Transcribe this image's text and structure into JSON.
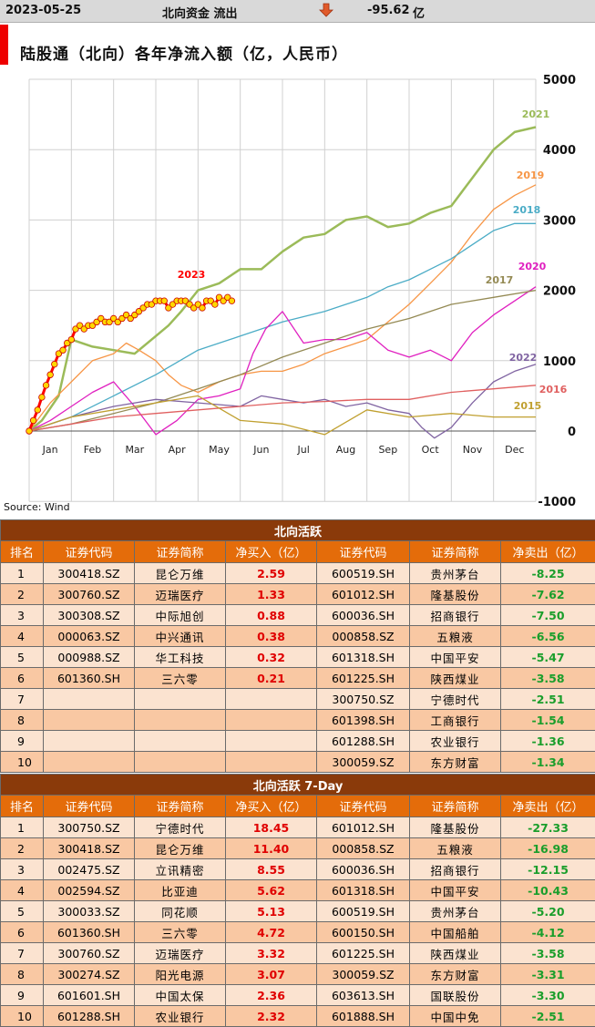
{
  "header": {
    "date": "2023-05-25",
    "label": "北向资金 流出",
    "arrow_icon": "down-arrow-icon",
    "arrow_color": "#e05a2a",
    "value": "-95.62",
    "unit": "亿"
  },
  "chart_data": {
    "type": "line",
    "title": "陆股通（北向）各年净流入额（亿，人民币）",
    "source": "Source: Wind",
    "categories": [
      "Jan",
      "Feb",
      "Mar",
      "Apr",
      "May",
      "Jun",
      "Jul",
      "Aug",
      "Sep",
      "Oct",
      "Nov",
      "Dec"
    ],
    "ylim": [
      -1000,
      5000
    ],
    "yticks": [
      5000,
      4000,
      3000,
      2000,
      1000,
      0,
      -1000
    ],
    "grid": true,
    "series": [
      {
        "name": "2021",
        "color": "#9bbb59",
        "x": [
          0,
          0.3,
          0.7,
          1,
          1.5,
          2,
          2.5,
          3,
          3.3,
          3.6,
          4,
          4.5,
          5,
          5.5,
          6,
          6.5,
          7,
          7.5,
          8,
          8.5,
          9,
          9.5,
          10,
          10.5,
          11,
          11.5,
          12
        ],
        "values": [
          0,
          150,
          500,
          1300,
          1200,
          1150,
          1100,
          1350,
          1500,
          1700,
          2000,
          2100,
          2300,
          2300,
          2550,
          2750,
          2800,
          3000,
          3050,
          2900,
          2950,
          3100,
          3200,
          3600,
          4000,
          4250,
          4320
        ]
      },
      {
        "name": "2019",
        "color": "#f79646",
        "x": [
          0,
          0.5,
          1,
          1.5,
          2,
          2.3,
          2.6,
          3,
          3.3,
          3.6,
          4,
          4.5,
          5,
          5.5,
          6,
          6.5,
          7,
          7.5,
          8,
          8.5,
          9,
          9.5,
          10,
          10.5,
          11,
          11.5,
          12
        ],
        "values": [
          0,
          400,
          700,
          1000,
          1100,
          1250,
          1150,
          1000,
          800,
          650,
          550,
          700,
          800,
          850,
          850,
          950,
          1100,
          1200,
          1300,
          1550,
          1800,
          2100,
          2400,
          2800,
          3150,
          3350,
          3500
        ]
      },
      {
        "name": "2018",
        "color": "#4bacc6",
        "x": [
          0,
          1,
          2,
          3,
          4,
          5,
          6,
          7,
          8,
          8.5,
          9,
          9.5,
          10,
          10.5,
          11,
          11.5,
          12
        ],
        "values": [
          0,
          200,
          500,
          800,
          1150,
          1350,
          1550,
          1700,
          1900,
          2050,
          2150,
          2300,
          2450,
          2650,
          2850,
          2950,
          2950
        ]
      },
      {
        "name": "2020",
        "color": "#e020c0",
        "x": [
          0,
          0.5,
          1,
          1.5,
          2,
          2.5,
          3,
          3.5,
          4,
          4.5,
          5,
          5.3,
          5.6,
          6,
          6.5,
          7,
          7.5,
          8,
          8.5,
          9,
          9.5,
          10,
          10.5,
          11,
          11.5,
          12
        ],
        "values": [
          0,
          150,
          350,
          550,
          700,
          350,
          -50,
          150,
          450,
          500,
          600,
          1100,
          1450,
          1700,
          1250,
          1300,
          1300,
          1400,
          1150,
          1050,
          1150,
          1000,
          1400,
          1650,
          1850,
          2050
        ]
      },
      {
        "name": "2017",
        "color": "#948a54",
        "x": [
          0,
          1,
          2,
          3,
          4,
          5,
          6,
          7,
          8,
          9,
          10,
          11,
          12
        ],
        "values": [
          0,
          100,
          250,
          400,
          600,
          800,
          1050,
          1250,
          1450,
          1600,
          1800,
          1900,
          2000
        ]
      },
      {
        "name": "2022",
        "color": "#8064a2",
        "x": [
          0,
          1,
          2,
          3,
          4,
          5,
          5.5,
          6,
          6.5,
          7,
          7.5,
          8,
          8.5,
          9,
          9.3,
          9.6,
          10,
          10.5,
          11,
          11.5,
          12
        ],
        "values": [
          0,
          200,
          350,
          450,
          400,
          350,
          500,
          450,
          400,
          450,
          350,
          400,
          300,
          250,
          50,
          -100,
          50,
          400,
          700,
          850,
          950
        ]
      },
      {
        "name": "2016",
        "color": "#e06060",
        "x": [
          0,
          1,
          2,
          3,
          4,
          5,
          6,
          7,
          8,
          9,
          10,
          11,
          12
        ],
        "values": [
          0,
          100,
          200,
          250,
          300,
          350,
          400,
          420,
          450,
          450,
          550,
          600,
          650
        ]
      },
      {
        "name": "2015",
        "color": "#c0a030",
        "x": [
          0,
          1,
          2,
          3,
          4,
          5,
          6,
          7,
          8,
          9,
          10,
          11,
          12
        ],
        "values": [
          0,
          200,
          300,
          400,
          500,
          150,
          100,
          -50,
          300,
          200,
          250,
          200,
          200
        ]
      },
      {
        "name": "2023",
        "color": "#ff0000",
        "marker_color": "#ffd700",
        "x": [
          0,
          0.1,
          0.2,
          0.3,
          0.4,
          0.5,
          0.6,
          0.7,
          0.8,
          0.9,
          1,
          1.1,
          1.2,
          1.3,
          1.4,
          1.5,
          1.6,
          1.7,
          1.8,
          1.9,
          2,
          2.1,
          2.2,
          2.3,
          2.4,
          2.5,
          2.6,
          2.7,
          2.8,
          2.9,
          3,
          3.1,
          3.2,
          3.3,
          3.4,
          3.5,
          3.6,
          3.7,
          3.8,
          3.9,
          4,
          4.1,
          4.2,
          4.3,
          4.4,
          4.5,
          4.6,
          4.7,
          4.8
        ],
        "values": [
          0,
          150,
          300,
          480,
          650,
          800,
          950,
          1100,
          1150,
          1250,
          1300,
          1450,
          1500,
          1450,
          1500,
          1500,
          1550,
          1600,
          1550,
          1550,
          1600,
          1550,
          1600,
          1650,
          1600,
          1650,
          1700,
          1750,
          1800,
          1800,
          1850,
          1850,
          1850,
          1750,
          1800,
          1850,
          1850,
          1850,
          1800,
          1750,
          1800,
          1750,
          1850,
          1850,
          1800,
          1900,
          1850,
          1900,
          1850
        ]
      }
    ]
  },
  "table1": {
    "title": "北向活跃",
    "headers": [
      "排名",
      "证券代码",
      "证券简称",
      "净买入（亿）",
      "证券代码",
      "证券简称",
      "净卖出（亿）"
    ],
    "rows": [
      [
        "1",
        "300418.SZ",
        "昆仑万维",
        "2.59",
        "600519.SH",
        "贵州茅台",
        "-8.25"
      ],
      [
        "2",
        "300760.SZ",
        "迈瑞医疗",
        "1.33",
        "601012.SH",
        "隆基股份",
        "-7.62"
      ],
      [
        "3",
        "300308.SZ",
        "中际旭创",
        "0.88",
        "600036.SH",
        "招商银行",
        "-7.50"
      ],
      [
        "4",
        "000063.SZ",
        "中兴通讯",
        "0.38",
        "000858.SZ",
        "五粮液",
        "-6.56"
      ],
      [
        "5",
        "000988.SZ",
        "华工科技",
        "0.32",
        "601318.SH",
        "中国平安",
        "-5.47"
      ],
      [
        "6",
        "601360.SH",
        "三六零",
        "0.21",
        "601225.SH",
        "陕西煤业",
        "-3.58"
      ],
      [
        "7",
        "",
        "",
        "",
        "300750.SZ",
        "宁德时代",
        "-2.51"
      ],
      [
        "8",
        "",
        "",
        "",
        "601398.SH",
        "工商银行",
        "-1.54"
      ],
      [
        "9",
        "",
        "",
        "",
        "601288.SH",
        "农业银行",
        "-1.36"
      ],
      [
        "10",
        "",
        "",
        "",
        "300059.SZ",
        "东方财富",
        "-1.34"
      ]
    ]
  },
  "table2": {
    "title": "北向活跃 7-Day",
    "headers": [
      "排名",
      "证券代码",
      "证券简称",
      "净买入（亿）",
      "证券代码",
      "证券简称",
      "净卖出（亿）"
    ],
    "rows": [
      [
        "1",
        "300750.SZ",
        "宁德时代",
        "18.45",
        "601012.SH",
        "隆基股份",
        "-27.33"
      ],
      [
        "2",
        "300418.SZ",
        "昆仑万维",
        "11.40",
        "000858.SZ",
        "五粮液",
        "-16.98"
      ],
      [
        "3",
        "002475.SZ",
        "立讯精密",
        "8.55",
        "600036.SH",
        "招商银行",
        "-12.15"
      ],
      [
        "4",
        "002594.SZ",
        "比亚迪",
        "5.62",
        "601318.SH",
        "中国平安",
        "-10.43"
      ],
      [
        "5",
        "300033.SZ",
        "同花顺",
        "5.13",
        "600519.SH",
        "贵州茅台",
        "-5.20"
      ],
      [
        "6",
        "601360.SH",
        "三六零",
        "4.72",
        "600150.SH",
        "中国船舶",
        "-4.12"
      ],
      [
        "7",
        "300760.SZ",
        "迈瑞医疗",
        "3.32",
        "601225.SH",
        "陕西煤业",
        "-3.58"
      ],
      [
        "8",
        "300274.SZ",
        "阳光电源",
        "3.07",
        "300059.SZ",
        "东方财富",
        "-3.31"
      ],
      [
        "9",
        "601601.SH",
        "中国太保",
        "2.36",
        "603613.SH",
        "国联股份",
        "-3.30"
      ],
      [
        "10",
        "601288.SH",
        "农业银行",
        "2.32",
        "601888.SH",
        "中国中免",
        "-2.51"
      ]
    ]
  }
}
